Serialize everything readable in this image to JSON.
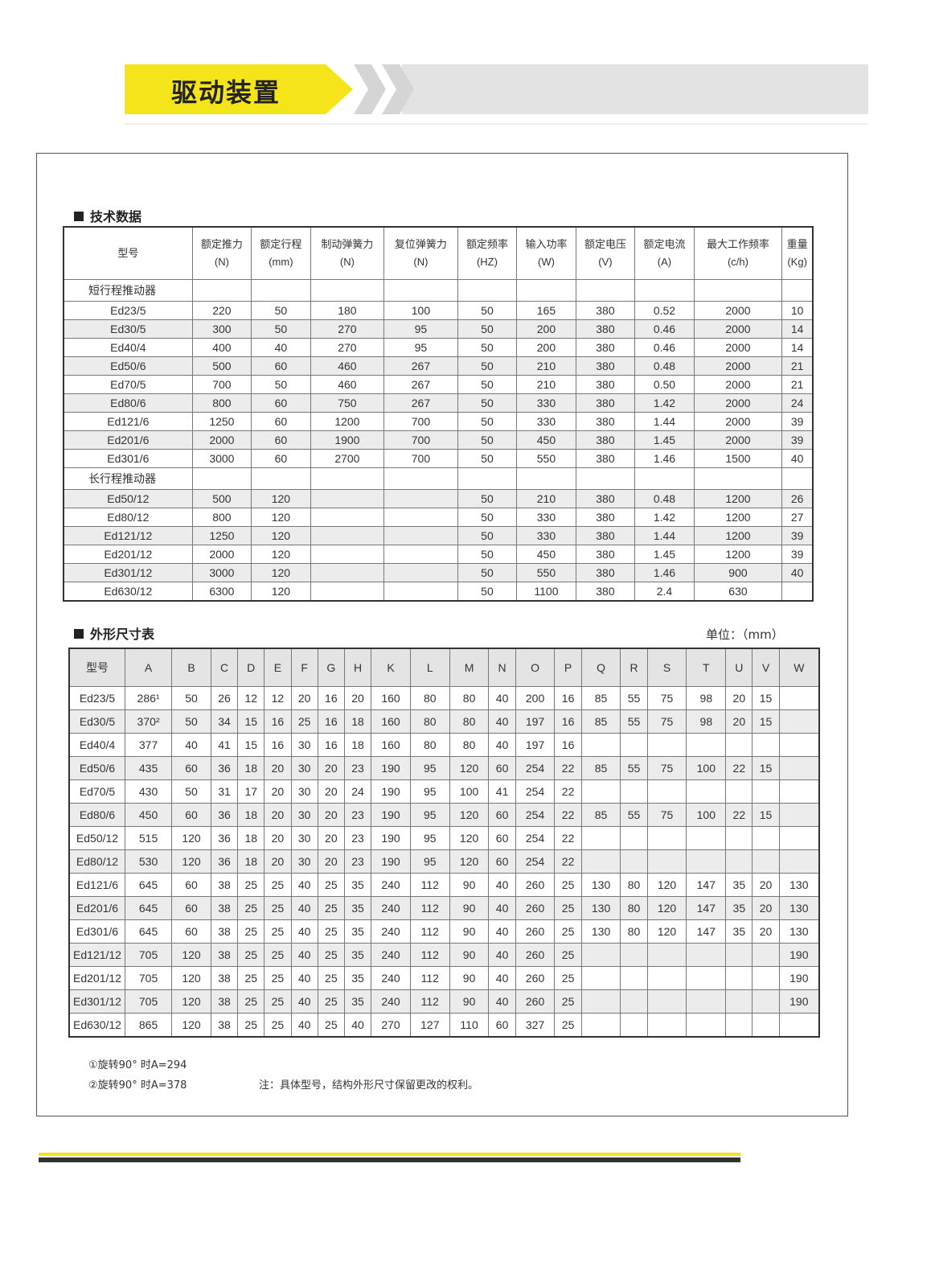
{
  "header": {
    "title": "驱动装置",
    "accent": "#f6e41a"
  },
  "tech": {
    "title": "技术数据",
    "columns": [
      [
        "型号",
        ""
      ],
      [
        "额定推力",
        "(N)"
      ],
      [
        "额定行程",
        "(mm)"
      ],
      [
        "制动弹簧力",
        "(N)"
      ],
      [
        "复位弹簧力",
        "(N)"
      ],
      [
        "额定频率",
        "(HZ)"
      ],
      [
        "输入功率",
        "(W)"
      ],
      [
        "额定电压",
        "(V)"
      ],
      [
        "额定电流",
        "(A)"
      ],
      [
        "最大工作频率",
        "(c/h)"
      ],
      [
        "重量",
        "(Kg)"
      ]
    ],
    "groups": [
      {
        "name": "短行程推动器",
        "rows": [
          [
            "Ed23/5",
            "220",
            "50",
            "180",
            "100",
            "50",
            "165",
            "380",
            "0.52",
            "2000",
            "10"
          ],
          [
            "Ed30/5",
            "300",
            "50",
            "270",
            "95",
            "50",
            "200",
            "380",
            "0.46",
            "2000",
            "14"
          ],
          [
            "Ed40/4",
            "400",
            "40",
            "270",
            "95",
            "50",
            "200",
            "380",
            "0.46",
            "2000",
            "14"
          ],
          [
            "Ed50/6",
            "500",
            "60",
            "460",
            "267",
            "50",
            "210",
            "380",
            "0.48",
            "2000",
            "21"
          ],
          [
            "Ed70/5",
            "700",
            "50",
            "460",
            "267",
            "50",
            "210",
            "380",
            "0.50",
            "2000",
            "21"
          ],
          [
            "Ed80/6",
            "800",
            "60",
            "750",
            "267",
            "50",
            "330",
            "380",
            "1.42",
            "2000",
            "24"
          ],
          [
            "Ed121/6",
            "1250",
            "60",
            "1200",
            "700",
            "50",
            "330",
            "380",
            "1.44",
            "2000",
            "39"
          ],
          [
            "Ed201/6",
            "2000",
            "60",
            "1900",
            "700",
            "50",
            "450",
            "380",
            "1.45",
            "2000",
            "39"
          ],
          [
            "Ed301/6",
            "3000",
            "60",
            "2700",
            "700",
            "50",
            "550",
            "380",
            "1.46",
            "1500",
            "40"
          ]
        ]
      },
      {
        "name": "长行程推动器",
        "rows": [
          [
            "Ed50/12",
            "500",
            "120",
            "",
            "",
            "50",
            "210",
            "380",
            "0.48",
            "1200",
            "26"
          ],
          [
            "Ed80/12",
            "800",
            "120",
            "",
            "",
            "50",
            "330",
            "380",
            "1.42",
            "1200",
            "27"
          ],
          [
            "Ed121/12",
            "1250",
            "120",
            "",
            "",
            "50",
            "330",
            "380",
            "1.44",
            "1200",
            "39"
          ],
          [
            "Ed201/12",
            "2000",
            "120",
            "",
            "",
            "50",
            "450",
            "380",
            "1.45",
            "1200",
            "39"
          ],
          [
            "Ed301/12",
            "3000",
            "120",
            "",
            "",
            "50",
            "550",
            "380",
            "1.46",
            "900",
            "40"
          ],
          [
            "Ed630/12",
            "6300",
            "120",
            "",
            "",
            "50",
            "1100",
            "380",
            "2.4",
            "630",
            ""
          ]
        ]
      }
    ]
  },
  "dims": {
    "title": "外形尺寸表",
    "unit": "单位：（mm）",
    "columns": [
      "型号",
      "A",
      "B",
      "C",
      "D",
      "E",
      "F",
      "G",
      "H",
      "K",
      "L",
      "M",
      "N",
      "O",
      "P",
      "Q",
      "R",
      "S",
      "T",
      "U",
      "V",
      "W"
    ],
    "rows": [
      [
        "Ed23/5",
        "286¹",
        "50",
        "26",
        "12",
        "12",
        "20",
        "16",
        "20",
        "160",
        "80",
        "80",
        "40",
        "200",
        "16",
        "85",
        "55",
        "75",
        "98",
        "20",
        "15",
        ""
      ],
      [
        "Ed30/5",
        "370²",
        "50",
        "34",
        "15",
        "16",
        "25",
        "16",
        "18",
        "160",
        "80",
        "80",
        "40",
        "197",
        "16",
        "85",
        "55",
        "75",
        "98",
        "20",
        "15",
        ""
      ],
      [
        "Ed40/4",
        "377",
        "40",
        "41",
        "15",
        "16",
        "30",
        "16",
        "18",
        "160",
        "80",
        "80",
        "40",
        "197",
        "16",
        "",
        "",
        "",
        "",
        "",
        "",
        ""
      ],
      [
        "Ed50/6",
        "435",
        "60",
        "36",
        "18",
        "20",
        "30",
        "20",
        "23",
        "190",
        "95",
        "120",
        "60",
        "254",
        "22",
        "85",
        "55",
        "75",
        "100",
        "22",
        "15",
        ""
      ],
      [
        "Ed70/5",
        "430",
        "50",
        "31",
        "17",
        "20",
        "30",
        "20",
        "24",
        "190",
        "95",
        "100",
        "41",
        "254",
        "22",
        "",
        "",
        "",
        "",
        "",
        "",
        ""
      ],
      [
        "Ed80/6",
        "450",
        "60",
        "36",
        "18",
        "20",
        "30",
        "20",
        "23",
        "190",
        "95",
        "120",
        "60",
        "254",
        "22",
        "85",
        "55",
        "75",
        "100",
        "22",
        "15",
        ""
      ],
      [
        "Ed50/12",
        "515",
        "120",
        "36",
        "18",
        "20",
        "30",
        "20",
        "23",
        "190",
        "95",
        "120",
        "60",
        "254",
        "22",
        "",
        "",
        "",
        "",
        "",
        "",
        ""
      ],
      [
        "Ed80/12",
        "530",
        "120",
        "36",
        "18",
        "20",
        "30",
        "20",
        "23",
        "190",
        "95",
        "120",
        "60",
        "254",
        "22",
        "",
        "",
        "",
        "",
        "",
        "",
        ""
      ],
      [
        "Ed121/6",
        "645",
        "60",
        "38",
        "25",
        "25",
        "40",
        "25",
        "35",
        "240",
        "112",
        "90",
        "40",
        "260",
        "25",
        "130",
        "80",
        "120",
        "147",
        "35",
        "20",
        "130"
      ],
      [
        "Ed201/6",
        "645",
        "60",
        "38",
        "25",
        "25",
        "40",
        "25",
        "35",
        "240",
        "112",
        "90",
        "40",
        "260",
        "25",
        "130",
        "80",
        "120",
        "147",
        "35",
        "20",
        "130"
      ],
      [
        "Ed301/6",
        "645",
        "60",
        "38",
        "25",
        "25",
        "40",
        "25",
        "35",
        "240",
        "112",
        "90",
        "40",
        "260",
        "25",
        "130",
        "80",
        "120",
        "147",
        "35",
        "20",
        "130"
      ],
      [
        "Ed121/12",
        "705",
        "120",
        "38",
        "25",
        "25",
        "40",
        "25",
        "35",
        "240",
        "112",
        "90",
        "40",
        "260",
        "25",
        "",
        "",
        "",
        "",
        "",
        "",
        "190"
      ],
      [
        "Ed201/12",
        "705",
        "120",
        "38",
        "25",
        "25",
        "40",
        "25",
        "35",
        "240",
        "112",
        "90",
        "40",
        "260",
        "25",
        "",
        "",
        "",
        "",
        "",
        "",
        "190"
      ],
      [
        "Ed301/12",
        "705",
        "120",
        "38",
        "25",
        "25",
        "40",
        "25",
        "35",
        "240",
        "112",
        "90",
        "40",
        "260",
        "25",
        "",
        "",
        "",
        "",
        "",
        "",
        "190"
      ],
      [
        "Ed630/12",
        "865",
        "120",
        "38",
        "25",
        "25",
        "40",
        "25",
        "40",
        "270",
        "127",
        "110",
        "60",
        "327",
        "25",
        "",
        "",
        "",
        "",
        "",
        "",
        ""
      ]
    ],
    "notes": [
      "①旋转90° 时A=294",
      "②旋转90° 时A=378"
    ],
    "remark": "注：具体型号，结构外形尺寸保留更改的权利。"
  }
}
